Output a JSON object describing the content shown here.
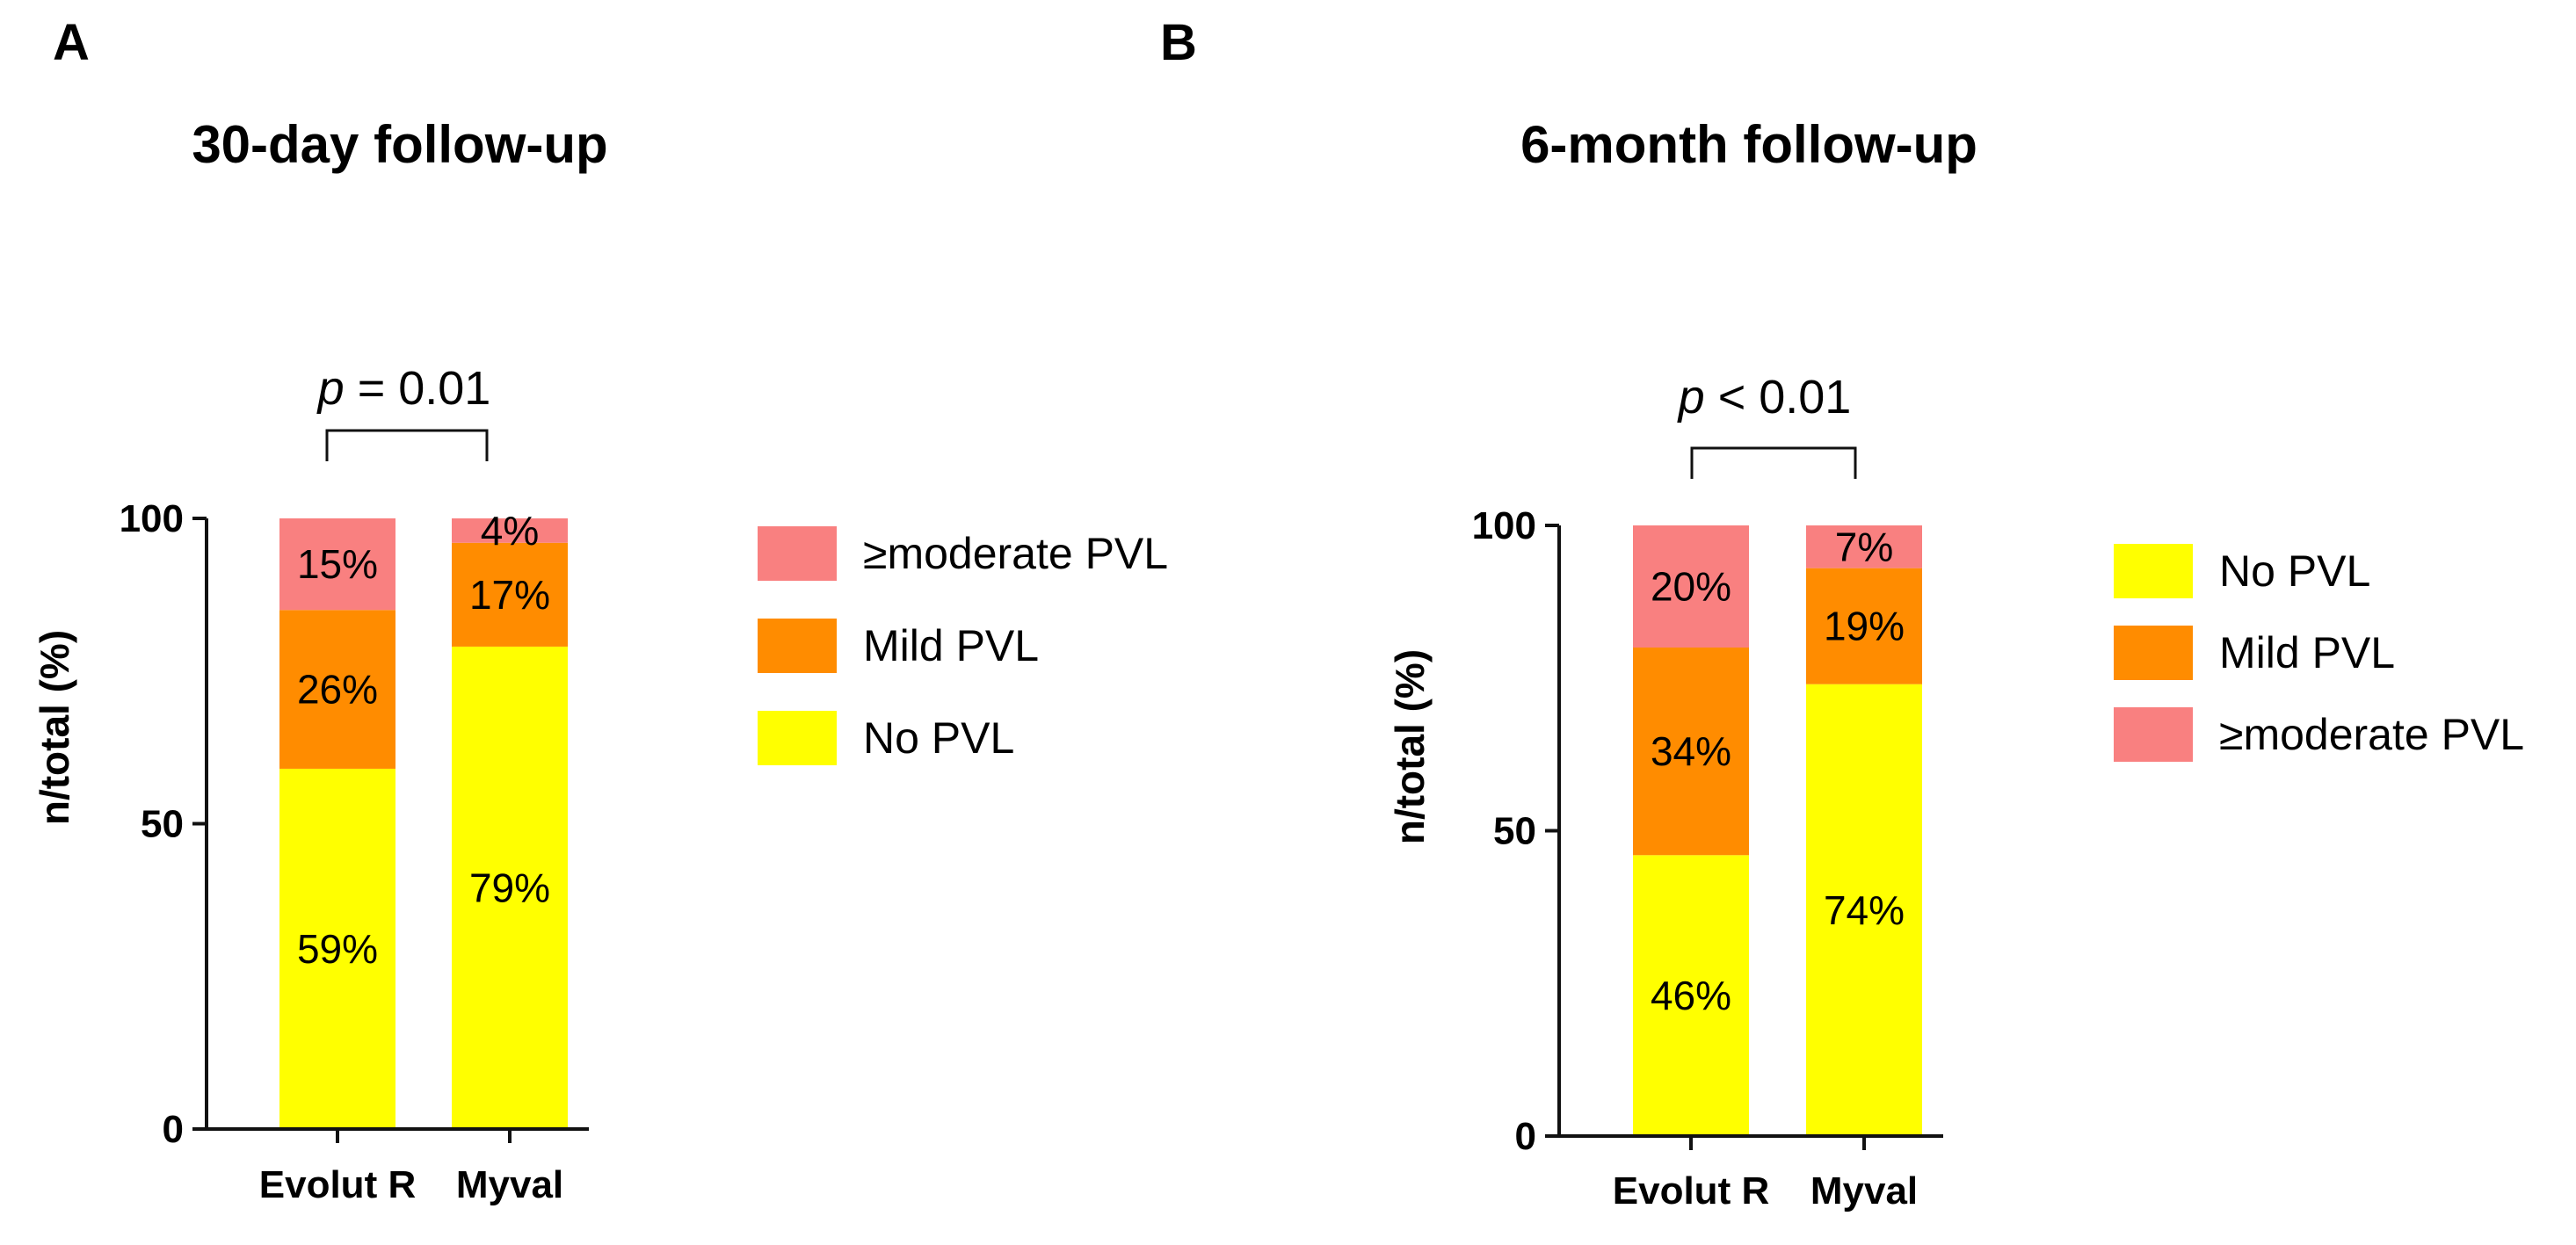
{
  "colors": {
    "no_pvl": "#ffff00",
    "mild_pvl": "#ff8c00",
    "moderate_pvl": "#f98080",
    "axis": "#111111"
  },
  "chart_data": [
    {
      "panel": "A",
      "type": "bar",
      "stacked": true,
      "title": "30-day follow-up",
      "ylabel": "n/total (%)",
      "xlabel": "",
      "ylim": [
        0,
        100
      ],
      "yticks": [
        "0",
        "50",
        "100"
      ],
      "categories": [
        "Evolut R",
        "Myval"
      ],
      "series": [
        {
          "name": "No PVL",
          "color_key": "no_pvl",
          "values": [
            59,
            79
          ],
          "labels": [
            "59%",
            "79%"
          ]
        },
        {
          "name": "Mild PVL",
          "color_key": "mild_pvl",
          "values": [
            26,
            17
          ],
          "labels": [
            "26%",
            "17%"
          ]
        },
        {
          "name": "≥moderate PVL",
          "color_key": "moderate_pvl",
          "values": [
            15,
            4
          ],
          "labels": [
            "15%",
            "4%"
          ]
        }
      ],
      "legend": {
        "placement": "right",
        "order": [
          "≥moderate PVL",
          "Mild PVL",
          "No PVL"
        ]
      },
      "annotation": {
        "p_symbol": "p",
        "p_rest": " = 0.01"
      }
    },
    {
      "panel": "B",
      "type": "bar",
      "stacked": true,
      "title": "6-month follow-up",
      "ylabel": "n/total (%)",
      "xlabel": "",
      "ylim": [
        0,
        100
      ],
      "yticks": [
        "0",
        "50",
        "100"
      ],
      "categories": [
        "Evolut R",
        "Myval"
      ],
      "series": [
        {
          "name": "No PVL",
          "color_key": "no_pvl",
          "values": [
            46,
            74
          ],
          "labels": [
            "46%",
            "74%"
          ]
        },
        {
          "name": "Mild PVL",
          "color_key": "mild_pvl",
          "values": [
            34,
            19
          ],
          "labels": [
            "34%",
            "19%"
          ]
        },
        {
          "name": "≥moderate PVL",
          "color_key": "moderate_pvl",
          "values": [
            20,
            7
          ],
          "labels": [
            "20%",
            "7%"
          ]
        }
      ],
      "legend": {
        "placement": "right",
        "order": [
          "No PVL",
          "Mild PVL",
          "≥moderate PVL"
        ]
      },
      "annotation": {
        "p_symbol": "p",
        "p_rest": " < 0.01"
      }
    }
  ]
}
